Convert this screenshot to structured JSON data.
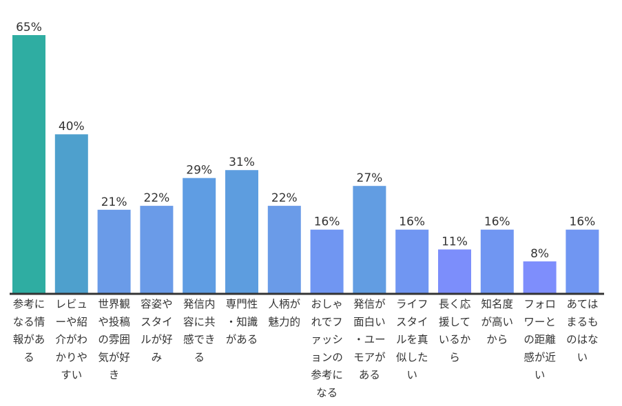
{
  "chart_data": {
    "type": "bar",
    "categories": [
      "参考になる情報がある",
      "レビューや紹介がわかりやすい",
      "世界観や投稿の雰囲気が好き",
      "容姿やスタイルが好み",
      "発信内容に共感できる",
      "専門性・知識がある",
      "人柄が魅力的",
      "おしゃれでファッションの参考になる",
      "発信が面白い・ユーモアがある",
      "ライフスタイルを真似したい",
      "長く応援しているから",
      "知名度が高いから",
      "フォロワーとの距離感が近い",
      "あてはまるものはない"
    ],
    "category_lines": [
      [
        "参考に",
        "なる情",
        "報があ",
        "る"
      ],
      [
        "レビュ",
        "ーや紹",
        "介がわ",
        "かりや",
        "すい"
      ],
      [
        "世界観",
        "や投稿",
        "の雰囲",
        "気が好",
        "き"
      ],
      [
        "容姿や",
        "スタイ",
        "ルが好",
        "み"
      ],
      [
        "発信内",
        "容に共",
        "感でき",
        "る"
      ],
      [
        "専門性",
        "・知識",
        "がある"
      ],
      [
        "人柄が",
        "魅力的"
      ],
      [
        "おしゃ",
        "れでフ",
        "ァッシ",
        "ョンの",
        "参考に",
        "なる"
      ],
      [
        "発信が",
        "面白い",
        "・ユー",
        "モアが",
        "ある"
      ],
      [
        "ライフ",
        "スタイ",
        "ルを真",
        "似した",
        "い"
      ],
      [
        "長く応",
        "援して",
        "いるか",
        "ら"
      ],
      [
        "知名度",
        "が高い",
        "から"
      ],
      [
        "フォロ",
        "ワーと",
        "の距離",
        "感が近",
        "い"
      ],
      [
        "あては",
        "まるも",
        "のはな",
        "い"
      ]
    ],
    "values": [
      65,
      40,
      21,
      22,
      29,
      31,
      22,
      16,
      27,
      16,
      11,
      16,
      8,
      16
    ],
    "value_labels": [
      "65%",
      "40%",
      "21%",
      "22%",
      "29%",
      "31%",
      "22%",
      "16%",
      "27%",
      "16%",
      "11%",
      "16%",
      "8%",
      "16%"
    ],
    "bar_colors": [
      "#2fada2",
      "#4ea0cd",
      "#6a9be8",
      "#6a9be8",
      "#5f9de3",
      "#5d9ddf",
      "#6a9be8",
      "#7096f2",
      "#629de2",
      "#7096f2",
      "#7c8efb",
      "#7096f2",
      "#7e8efc",
      "#7096f2"
    ],
    "ylim": [
      0,
      65
    ],
    "unit": "%",
    "title": "",
    "xlabel": "",
    "ylabel": "",
    "grid": false,
    "legend": "none"
  }
}
